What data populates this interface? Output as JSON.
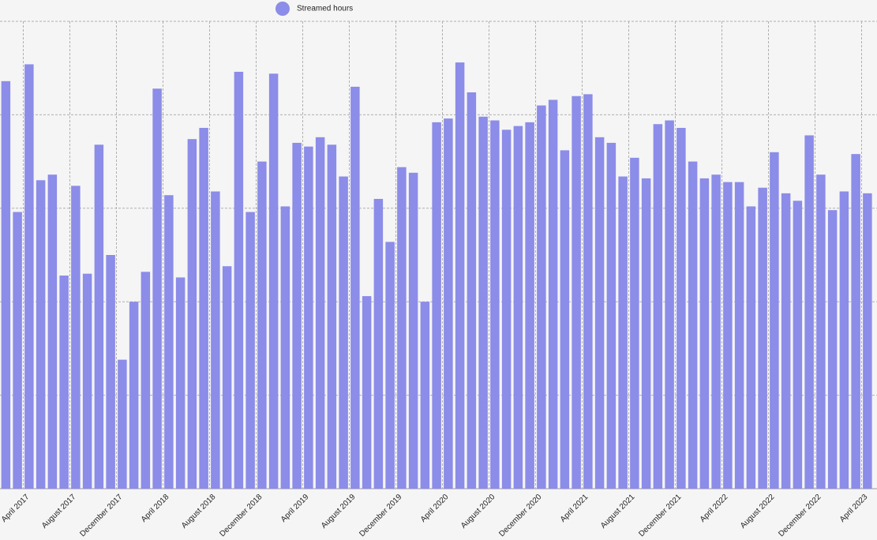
{
  "chart_data": {
    "type": "bar",
    "categories": [
      null,
      null,
      "April 2017",
      null,
      null,
      null,
      "August 2017",
      null,
      null,
      null,
      "December 2017",
      null,
      null,
      null,
      "April 2018",
      null,
      null,
      null,
      "August 2018",
      null,
      null,
      null,
      "December 2018",
      null,
      null,
      null,
      "April 2019",
      null,
      null,
      null,
      "August 2019",
      null,
      null,
      null,
      "December 2019",
      null,
      null,
      null,
      "April 2020",
      null,
      null,
      null,
      "August 2020",
      null,
      null,
      null,
      "December 2020",
      null,
      null,
      null,
      "April 2021",
      null,
      null,
      null,
      "August 2021",
      null,
      null,
      null,
      "December 2021",
      null,
      null,
      null,
      "April 2022",
      null,
      null,
      null,
      "August 2022",
      null,
      null,
      null,
      "December 2022",
      null,
      null,
      null,
      "April 2023"
    ],
    "series": [
      {
        "name": "Streamed hours",
        "color": "#8c8ce9",
        "values": [
          218,
          148,
          227,
          165,
          168,
          114,
          162,
          115,
          184,
          125,
          69,
          100,
          116,
          214,
          157,
          113,
          187,
          193,
          159,
          119,
          223,
          148,
          175,
          222,
          151,
          185,
          183,
          188,
          184,
          167,
          215,
          103,
          155,
          132,
          172,
          169,
          100,
          196,
          198,
          228,
          212,
          199,
          197,
          192,
          194,
          196,
          205,
          208,
          181,
          210,
          211,
          188,
          185,
          167,
          177,
          166,
          195,
          197,
          193,
          175,
          166,
          168,
          164,
          164,
          151,
          161,
          180,
          158,
          154,
          189,
          168,
          149,
          159,
          179,
          158
        ]
      }
    ],
    "ylim": [
      0,
      250
    ],
    "yticks": [
      0,
      50,
      100,
      150,
      200,
      250
    ],
    "grid": true,
    "legend": "top"
  }
}
